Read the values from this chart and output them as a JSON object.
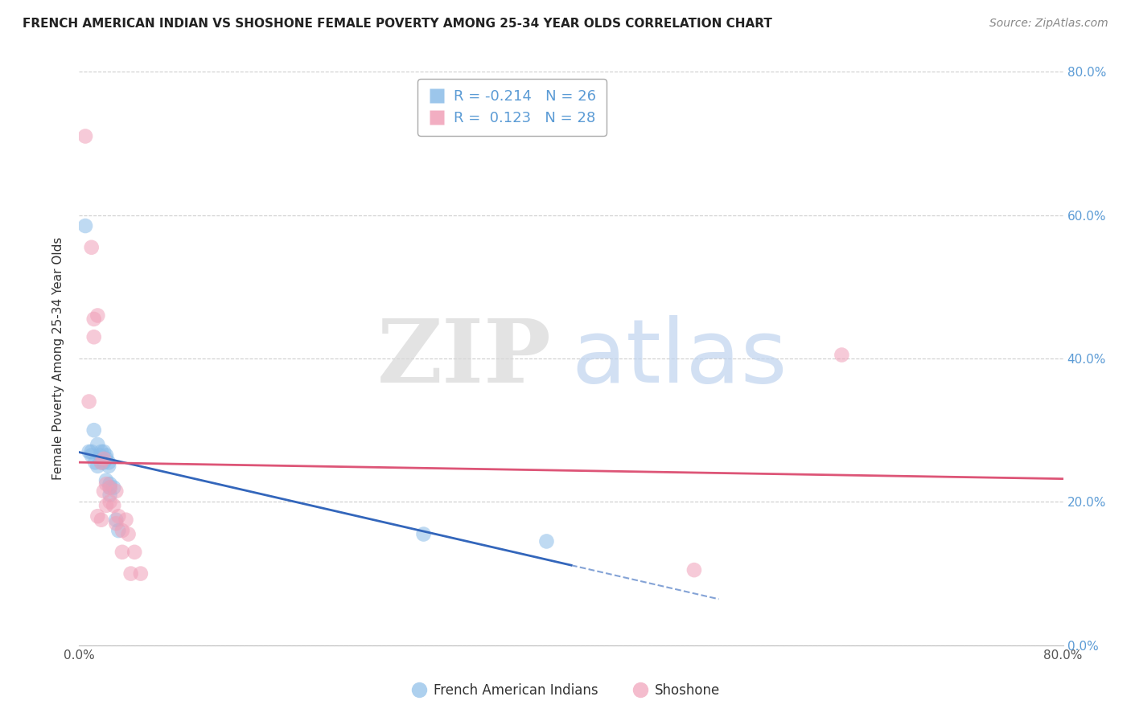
{
  "title": "FRENCH AMERICAN INDIAN VS SHOSHONE FEMALE POVERTY AMONG 25-34 YEAR OLDS CORRELATION CHART",
  "source": "Source: ZipAtlas.com",
  "ylabel": "Female Poverty Among 25-34 Year Olds",
  "legend_blue_label": "French American Indians",
  "legend_pink_label": "Shoshone",
  "blue_R": -0.214,
  "blue_N": 26,
  "pink_R": 0.123,
  "pink_N": 28,
  "xlim": [
    0.0,
    0.8
  ],
  "ylim": [
    0.0,
    0.8
  ],
  "blue_scatter_x": [
    0.005,
    0.008,
    0.01,
    0.01,
    0.012,
    0.013,
    0.015,
    0.015,
    0.017,
    0.018,
    0.018,
    0.02,
    0.02,
    0.022,
    0.022,
    0.022,
    0.024,
    0.024,
    0.025,
    0.025,
    0.025,
    0.028,
    0.03,
    0.032,
    0.28,
    0.38
  ],
  "blue_scatter_y": [
    0.585,
    0.27,
    0.265,
    0.27,
    0.3,
    0.255,
    0.28,
    0.25,
    0.265,
    0.255,
    0.27,
    0.27,
    0.255,
    0.26,
    0.265,
    0.23,
    0.255,
    0.25,
    0.225,
    0.22,
    0.21,
    0.22,
    0.175,
    0.16,
    0.155,
    0.145
  ],
  "pink_scatter_x": [
    0.005,
    0.008,
    0.01,
    0.012,
    0.012,
    0.015,
    0.015,
    0.018,
    0.018,
    0.02,
    0.02,
    0.022,
    0.022,
    0.025,
    0.025,
    0.028,
    0.03,
    0.03,
    0.032,
    0.035,
    0.035,
    0.038,
    0.04,
    0.042,
    0.045,
    0.05,
    0.5,
    0.62
  ],
  "pink_scatter_y": [
    0.71,
    0.34,
    0.555,
    0.455,
    0.43,
    0.46,
    0.18,
    0.175,
    0.255,
    0.26,
    0.215,
    0.195,
    0.225,
    0.22,
    0.2,
    0.195,
    0.17,
    0.215,
    0.18,
    0.16,
    0.13,
    0.175,
    0.155,
    0.1,
    0.13,
    0.1,
    0.105,
    0.405
  ],
  "blue_color": "#8BBCE8",
  "pink_color": "#F0A0B8",
  "blue_line_color": "#3366BB",
  "pink_line_color": "#DD5577",
  "background_color": "#FFFFFF",
  "grid_color": "#CCCCCC",
  "right_axis_color": "#5B9BD5",
  "title_color": "#222222",
  "source_color": "#888888",
  "watermark_zip_color": "#D8D8D8",
  "watermark_atlas_color": "#C0D4EE"
}
